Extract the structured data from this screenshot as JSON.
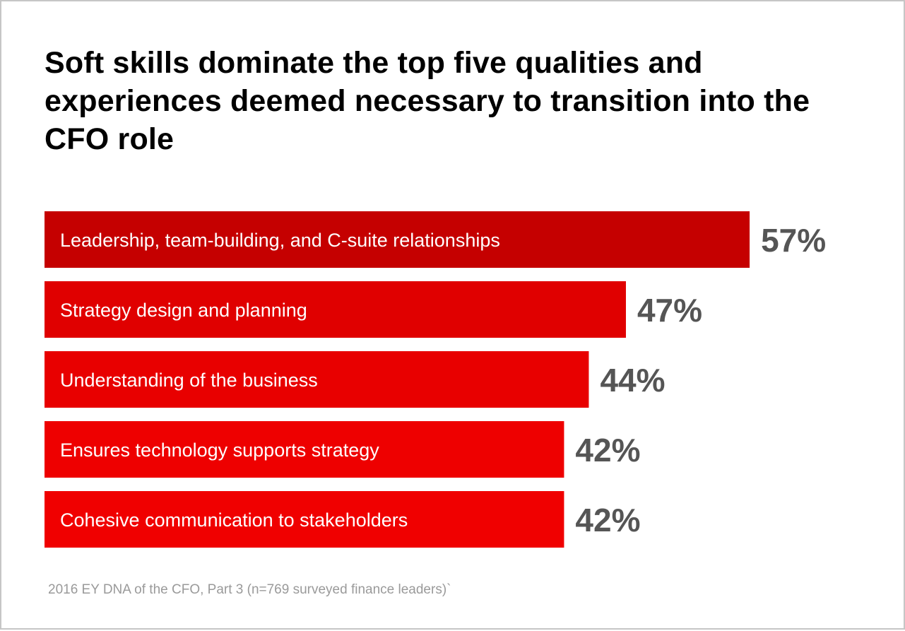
{
  "chart_data": {
    "type": "bar",
    "orientation": "horizontal",
    "title": "Soft skills dominate the top five qualities and experiences deemed necessary to transition into the CFO role",
    "categories": [
      "Leadership, team-building, and C-suite relationships",
      "Strategy design and planning",
      "Understanding of the business",
      "Ensures technology supports strategy",
      "Cohesive communication to stakeholders"
    ],
    "values": [
      57,
      47,
      44,
      42,
      42
    ],
    "value_labels": [
      "57%",
      "47%",
      "44%",
      "42%",
      "42%"
    ],
    "bar_colors": [
      "#c50000",
      "#e00000",
      "#e80000",
      "#ee0000",
      "#f00000"
    ],
    "label_color": "#ffffff",
    "value_label_color": "#555555",
    "grid": false,
    "legend": "none"
  },
  "source": "2016 EY DNA of the CFO, Part 3 (n=769 surveyed finance leaders)`"
}
